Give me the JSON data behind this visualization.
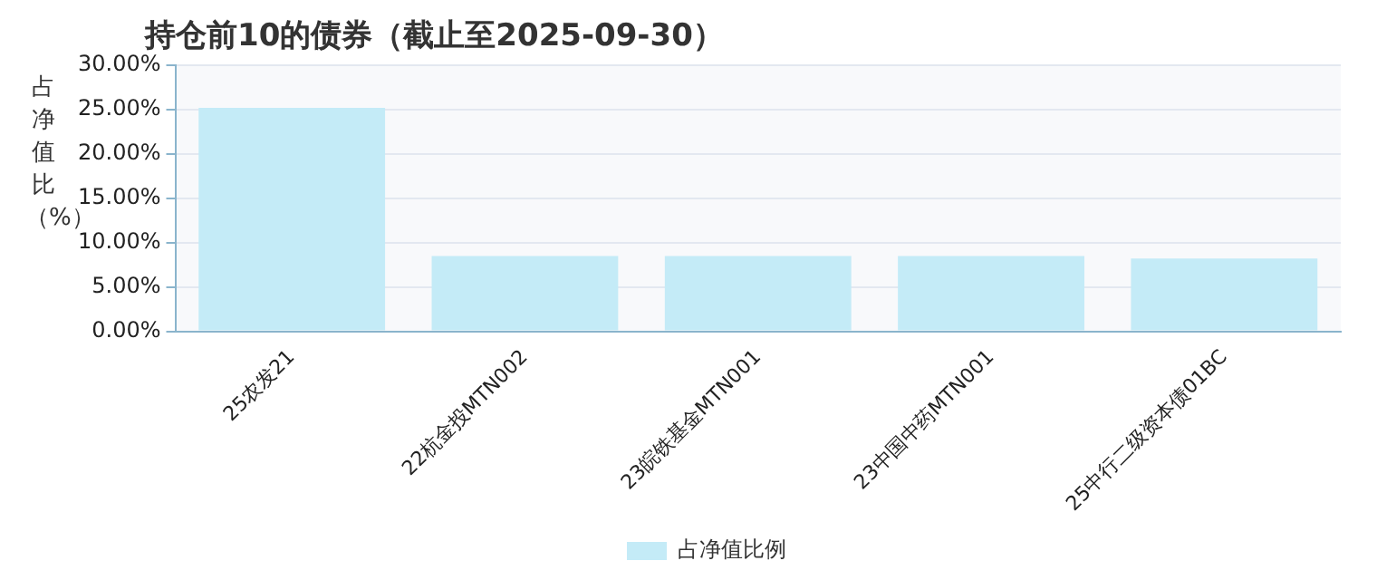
{
  "chart_data": {
    "type": "bar",
    "title": "持仓前10的债券（截止至2025-09-30）",
    "ylabel": "占净值比（%）",
    "categories": [
      "25农发21",
      "22杭金投MTN002",
      "23皖铁基金MTN001",
      "23中国中药MTN001",
      "25中行二级资本债01BC"
    ],
    "series": [
      {
        "name": "占净值比例",
        "color": "#c4ebf7",
        "values": [
          25.2,
          8.5,
          8.5,
          8.5,
          8.2
        ]
      }
    ],
    "ylim": [
      0,
      30
    ],
    "yticks": [
      {
        "value": 0,
        "label": "0.00%"
      },
      {
        "value": 5,
        "label": "5.00%"
      },
      {
        "value": 10,
        "label": "10.00%"
      },
      {
        "value": 15,
        "label": "15.00%"
      },
      {
        "value": 20,
        "label": "20.00%"
      },
      {
        "value": 25,
        "label": "25.00%"
      },
      {
        "value": 30,
        "label": "30.00%"
      }
    ],
    "grid": "y",
    "legend": "bottom"
  }
}
